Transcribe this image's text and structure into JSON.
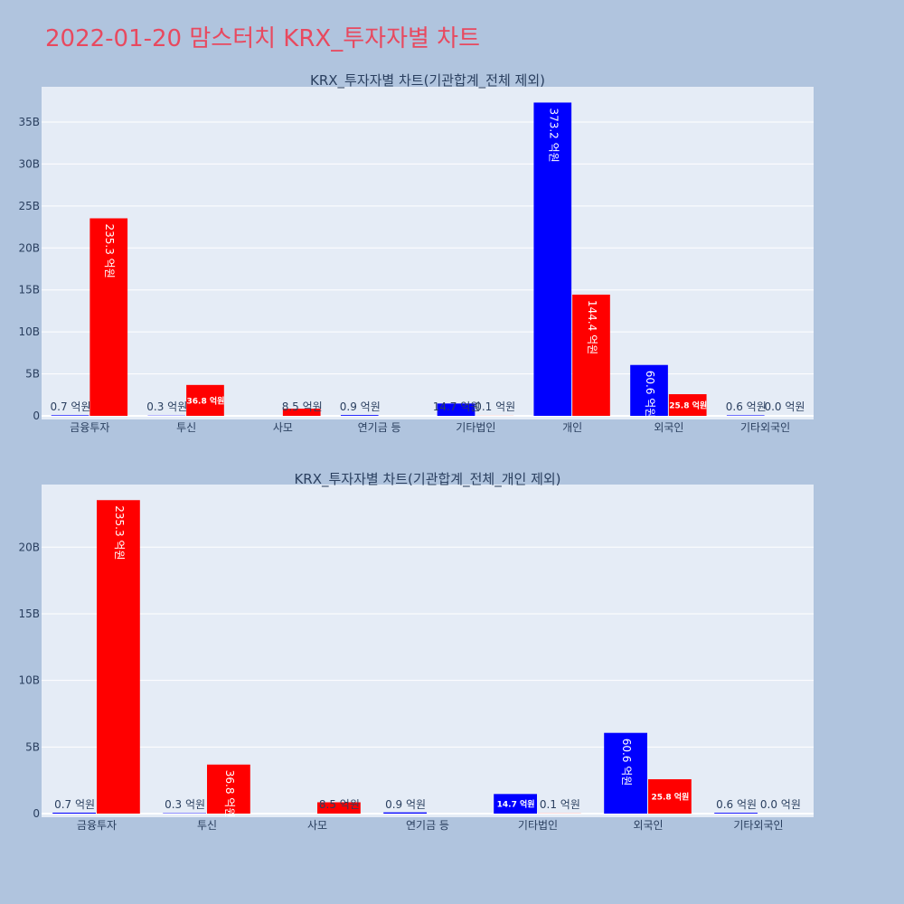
{
  "page_title": "2022-01-20 맘스터치 KRX_투자자별 차트",
  "colors": {
    "page_bg": "#b0c4de",
    "plot_bg": "#e5ecf6",
    "title": "#e8495f",
    "buy": "#0000ff",
    "sell": "#ff0000",
    "text": "#2a3f5f"
  },
  "chart_data": [
    {
      "type": "bar",
      "title": "KRX_투자자별 차트(기관합계_전체 제외)",
      "categories": [
        "금융투자",
        "투신",
        "사모",
        "연기금 등",
        "기타법인",
        "개인",
        "외국인",
        "기타외국인"
      ],
      "series": [
        {
          "color": "#0000ff",
          "values": [
            0.07,
            0.03,
            0.0,
            0.09,
            1.47,
            37.32,
            6.06,
            0.06
          ],
          "labels": [
            "0.7 억원",
            "0.3 억원",
            "",
            "0.9 억원",
            "14.7 억원",
            "373.2 억원",
            "60.6 억원",
            "0.6 억원"
          ]
        },
        {
          "color": "#ff0000",
          "values": [
            23.53,
            3.68,
            0.85,
            0.0,
            0.01,
            14.44,
            2.58,
            0.0
          ],
          "labels": [
            "235.3 억원",
            "36.8 억원",
            "8.5 억원",
            "",
            "0.1 억원",
            "144.4 억원",
            "25.8 억원",
            "0.0 억원"
          ]
        }
      ],
      "yticks": [
        "0",
        "5B",
        "10B",
        "15B",
        "20B",
        "25B",
        "30B",
        "35B"
      ],
      "ylim": [
        0,
        39.2
      ]
    },
    {
      "type": "bar",
      "title": "KRX_투자자별 차트(기관합계_전체_개인 제외)",
      "categories": [
        "금융투자",
        "투신",
        "사모",
        "연기금 등",
        "기타법인",
        "외국인",
        "기타외국인"
      ],
      "series": [
        {
          "color": "#0000ff",
          "values": [
            0.07,
            0.03,
            0.0,
            0.09,
            1.47,
            6.06,
            0.06
          ],
          "labels": [
            "0.7 억원",
            "0.3 억원",
            "",
            "0.9 억원",
            "14.7 억원",
            "60.6 억원",
            "0.6 억원"
          ]
        },
        {
          "color": "#ff0000",
          "values": [
            23.53,
            3.68,
            0.85,
            0.0,
            0.01,
            2.58,
            0.0
          ],
          "labels": [
            "235.3 억원",
            "36.8 억원",
            "8.5 억원",
            "",
            "0.1 억원",
            "25.8 억원",
            "0.0 억원"
          ]
        }
      ],
      "yticks": [
        "0",
        "5B",
        "10B",
        "15B",
        "20B"
      ],
      "ylim": [
        0,
        24.7
      ]
    }
  ]
}
